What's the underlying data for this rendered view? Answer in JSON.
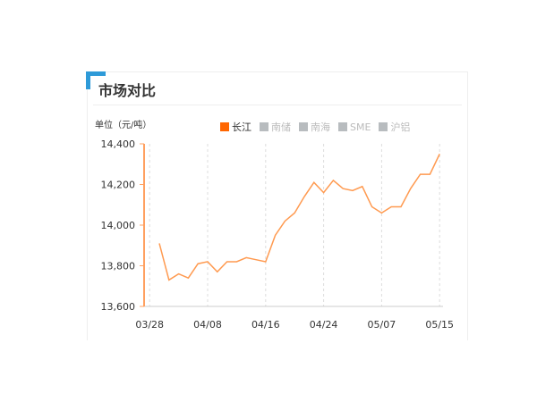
{
  "panel": {
    "title": "市场对比",
    "unit": "单位（元/吨）",
    "accent": "#2e9ad8"
  },
  "legend": [
    {
      "label": "长江",
      "active": true,
      "color": "#ff6600"
    },
    {
      "label": "南储",
      "active": false,
      "color": "#b8bcbf"
    },
    {
      "label": "南海",
      "active": false,
      "color": "#b8bcbf"
    },
    {
      "label": "SME",
      "active": false,
      "color": "#b8bcbf"
    },
    {
      "label": "沪铝",
      "active": false,
      "color": "#b8bcbf"
    }
  ],
  "chart_data": {
    "type": "line",
    "title": "",
    "xlabel": "",
    "ylabel": "单位（元/吨）",
    "ylim": [
      13600,
      14400
    ],
    "yticks": [
      "13,600",
      "13,800",
      "14,000",
      "14,200",
      "14,400"
    ],
    "grid": "vertical dashed",
    "legend_placement": "top",
    "x_tick_labels": [
      {
        "label": "03/28",
        "index": -1
      },
      {
        "label": "04/08",
        "index": 5
      },
      {
        "label": "04/16",
        "index": 11
      },
      {
        "label": "04/24",
        "index": 17
      },
      {
        "label": "05/07",
        "index": 23
      },
      {
        "label": "05/15",
        "index": 29
      }
    ],
    "series": [
      {
        "name": "长江",
        "color": "#ff9a50",
        "values": [
          13910,
          13730,
          13760,
          13740,
          13810,
          13820,
          13770,
          13820,
          13820,
          13840,
          13830,
          13820,
          13950,
          14020,
          14060,
          14140,
          14210,
          14160,
          14220,
          14180,
          14170,
          14190,
          14090,
          14060,
          14090,
          14090,
          14180,
          14250,
          14250,
          14350
        ]
      }
    ]
  }
}
